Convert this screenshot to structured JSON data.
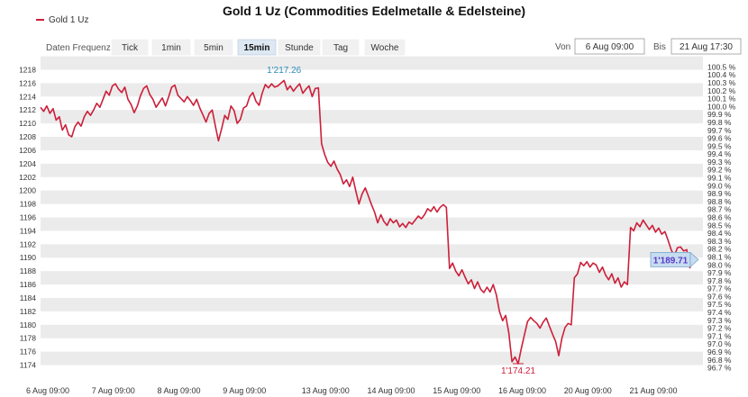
{
  "title": "Gold 1 Uz (Commodities Edelmetalle & Edelsteine)",
  "legend": {
    "label": "Gold 1 Uz",
    "color": "#cc1f3a"
  },
  "controls": {
    "frequency_label": "Daten Frequenz",
    "buttons": [
      "Tick",
      "1min",
      "5min",
      "15min",
      "Stunde",
      "Tag",
      "Woche"
    ],
    "active": "15min",
    "from_label": "Von",
    "from_value": "6 Aug 09:00",
    "to_label": "Bis",
    "to_value": "21 Aug 17:30"
  },
  "colors": {
    "line": "#cc1f3a",
    "band": "#ebebeb",
    "high_label": "#2a8db8",
    "low_label": "#cc1f3a",
    "last_label": "#5b38c9",
    "last_box": "#c6dcef"
  },
  "chart_data": {
    "type": "line",
    "title": "Gold 1 Uz (Commodities Edelmetalle & Edelsteine)",
    "xlabel": "",
    "ylabel": "",
    "x_categories": [
      "6 Aug 09:00",
      "7 Aug 09:00",
      "8 Aug 09:00",
      "9 Aug 09:00",
      "13 Aug 09:00",
      "14 Aug 09:00",
      "15 Aug 09:00",
      "16 Aug 09:00",
      "20 Aug 09:00",
      "21 Aug 09:00"
    ],
    "ylim": [
      1173,
      1219
    ],
    "yticks": [
      1174,
      1176,
      1178,
      1180,
      1182,
      1184,
      1186,
      1188,
      1190,
      1192,
      1194,
      1196,
      1198,
      1200,
      1202,
      1204,
      1206,
      1208,
      1210,
      1212,
      1214,
      1216,
      1218
    ],
    "y2_ticks": [
      "96.7 %",
      "96.8 %",
      "96.9 %",
      "97.0 %",
      "97.1 %",
      "97.2 %",
      "97.3 %",
      "97.4 %",
      "97.5 %",
      "97.6 %",
      "97.7 %",
      "97.8 %",
      "97.9 %",
      "98.0 %",
      "98.1 %",
      "98.2 %",
      "98.3 %",
      "98.4 %",
      "98.5 %",
      "98.6 %",
      "98.7 %",
      "98.8 %",
      "98.9 %",
      "99.0 %",
      "99.1 %",
      "99.2 %",
      "99.3 %",
      "99.4 %",
      "99.5 %",
      "99.6 %",
      "99.7 %",
      "99.8 %",
      "99.9 %",
      "100.0 %",
      "100.1 %",
      "100.2 %",
      "100.3 %",
      "100.4 %",
      "100.5 %"
    ],
    "y2lim": [
      96.65,
      100.55
    ],
    "grid": "alternating horizontal bands",
    "legend_position": "top-left",
    "series": [
      {
        "name": "Gold 1 Uz",
        "points": [
          [
            0,
            1212.4
          ],
          [
            1,
            1211.8
          ],
          [
            2,
            1212.6
          ],
          [
            3,
            1211.5
          ],
          [
            4,
            1212.2
          ],
          [
            5,
            1210.5
          ],
          [
            6,
            1211.0
          ],
          [
            7,
            1209.0
          ],
          [
            8,
            1209.8
          ],
          [
            9,
            1208.3
          ],
          [
            10,
            1208.0
          ],
          [
            11,
            1209.5
          ],
          [
            12,
            1210.2
          ],
          [
            13,
            1209.6
          ],
          [
            14,
            1211.0
          ],
          [
            15,
            1211.8
          ],
          [
            16,
            1211.2
          ],
          [
            17,
            1212.0
          ],
          [
            18,
            1213.0
          ],
          [
            19,
            1212.4
          ],
          [
            20,
            1213.6
          ],
          [
            21,
            1214.8
          ],
          [
            22,
            1214.2
          ],
          [
            23,
            1215.6
          ],
          [
            24,
            1215.9
          ],
          [
            25,
            1215.1
          ],
          [
            26,
            1214.6
          ],
          [
            27,
            1215.4
          ],
          [
            28,
            1213.6
          ],
          [
            29,
            1212.8
          ],
          [
            30,
            1211.6
          ],
          [
            31,
            1212.6
          ],
          [
            32,
            1214.1
          ],
          [
            33,
            1215.2
          ],
          [
            34,
            1215.6
          ],
          [
            35,
            1214.3
          ],
          [
            36,
            1213.6
          ],
          [
            37,
            1212.4
          ],
          [
            38,
            1213.1
          ],
          [
            39,
            1213.8
          ],
          [
            40,
            1212.6
          ],
          [
            41,
            1213.9
          ],
          [
            42,
            1215.4
          ],
          [
            43,
            1215.7
          ],
          [
            44,
            1214.2
          ],
          [
            45,
            1213.7
          ],
          [
            46,
            1213.2
          ],
          [
            47,
            1214.0
          ],
          [
            48,
            1213.4
          ],
          [
            49,
            1212.7
          ],
          [
            50,
            1213.6
          ],
          [
            51,
            1212.3
          ],
          [
            52,
            1211.3
          ],
          [
            53,
            1210.2
          ],
          [
            54,
            1211.5
          ],
          [
            55,
            1212.0
          ],
          [
            56,
            1209.6
          ],
          [
            57,
            1207.4
          ],
          [
            58,
            1209.2
          ],
          [
            59,
            1211.2
          ],
          [
            60,
            1210.6
          ],
          [
            61,
            1212.6
          ],
          [
            62,
            1211.9
          ],
          [
            63,
            1210.0
          ],
          [
            64,
            1210.6
          ],
          [
            65,
            1212.3
          ],
          [
            66,
            1212.6
          ],
          [
            67,
            1214.0
          ],
          [
            68,
            1214.6
          ],
          [
            69,
            1213.3
          ],
          [
            70,
            1212.7
          ],
          [
            71,
            1214.5
          ],
          [
            72,
            1215.8
          ],
          [
            73,
            1215.3
          ],
          [
            74,
            1215.9
          ],
          [
            75,
            1215.4
          ],
          [
            76,
            1215.6
          ],
          [
            77,
            1216.0
          ],
          [
            78,
            1216.4
          ],
          [
            79,
            1215.0
          ],
          [
            80,
            1215.6
          ],
          [
            81,
            1214.8
          ],
          [
            82,
            1215.4
          ],
          [
            83,
            1215.9
          ],
          [
            84,
            1214.5
          ],
          [
            85,
            1215.1
          ],
          [
            86,
            1215.6
          ],
          [
            87,
            1214.0
          ],
          [
            88,
            1215.2
          ],
          [
            89,
            1215.3
          ],
          [
            90,
            1207.0
          ],
          [
            91,
            1205.4
          ],
          [
            92,
            1204.2
          ],
          [
            93,
            1203.6
          ],
          [
            94,
            1204.4
          ],
          [
            95,
            1203.2
          ],
          [
            96,
            1202.4
          ],
          [
            97,
            1201.0
          ],
          [
            98,
            1201.6
          ],
          [
            99,
            1200.6
          ],
          [
            100,
            1202.0
          ],
          [
            101,
            1199.9
          ],
          [
            102,
            1198.0
          ],
          [
            103,
            1199.5
          ],
          [
            104,
            1200.4
          ],
          [
            105,
            1199.2
          ],
          [
            106,
            1197.9
          ],
          [
            107,
            1196.8
          ],
          [
            108,
            1195.2
          ],
          [
            109,
            1196.4
          ],
          [
            110,
            1195.4
          ],
          [
            111,
            1194.8
          ],
          [
            112,
            1195.8
          ],
          [
            113,
            1195.2
          ],
          [
            114,
            1195.6
          ],
          [
            115,
            1194.6
          ],
          [
            116,
            1195.1
          ],
          [
            117,
            1194.5
          ],
          [
            118,
            1195.3
          ],
          [
            119,
            1195.0
          ],
          [
            120,
            1195.6
          ],
          [
            121,
            1196.2
          ],
          [
            122,
            1195.8
          ],
          [
            123,
            1196.4
          ],
          [
            124,
            1197.3
          ],
          [
            125,
            1196.9
          ],
          [
            126,
            1197.6
          ],
          [
            127,
            1196.8
          ],
          [
            128,
            1197.5
          ],
          [
            129,
            1197.9
          ],
          [
            130,
            1197.5
          ],
          [
            131,
            1188.4
          ],
          [
            132,
            1189.2
          ],
          [
            133,
            1188.0
          ],
          [
            134,
            1187.3
          ],
          [
            135,
            1188.2
          ],
          [
            136,
            1187.1
          ],
          [
            137,
            1186.1
          ],
          [
            138,
            1186.7
          ],
          [
            139,
            1185.4
          ],
          [
            140,
            1186.4
          ],
          [
            141,
            1185.3
          ],
          [
            142,
            1184.8
          ],
          [
            143,
            1185.6
          ],
          [
            144,
            1184.9
          ],
          [
            145,
            1186.0
          ],
          [
            146,
            1184.5
          ],
          [
            147,
            1182.0
          ],
          [
            148,
            1180.6
          ],
          [
            149,
            1181.4
          ],
          [
            150,
            1178.8
          ],
          [
            151,
            1174.5
          ],
          [
            152,
            1175.2
          ],
          [
            153,
            1174.21
          ],
          [
            154,
            1176.5
          ],
          [
            155,
            1178.5
          ],
          [
            156,
            1180.5
          ],
          [
            157,
            1181.1
          ],
          [
            158,
            1180.6
          ],
          [
            159,
            1180.2
          ],
          [
            160,
            1179.5
          ],
          [
            161,
            1180.4
          ],
          [
            162,
            1181.0
          ],
          [
            163,
            1179.8
          ],
          [
            164,
            1178.6
          ],
          [
            165,
            1177.5
          ],
          [
            166,
            1175.4
          ],
          [
            167,
            1178.0
          ],
          [
            168,
            1179.6
          ],
          [
            169,
            1180.2
          ],
          [
            170,
            1180.0
          ],
          [
            171,
            1187.0
          ],
          [
            172,
            1187.6
          ],
          [
            173,
            1189.3
          ],
          [
            174,
            1188.8
          ],
          [
            175,
            1189.4
          ],
          [
            176,
            1188.6
          ],
          [
            177,
            1189.2
          ],
          [
            178,
            1188.9
          ],
          [
            179,
            1187.8
          ],
          [
            180,
            1188.6
          ],
          [
            181,
            1187.4
          ],
          [
            182,
            1186.7
          ],
          [
            183,
            1187.6
          ],
          [
            184,
            1186.2
          ],
          [
            185,
            1187.0
          ],
          [
            186,
            1185.6
          ],
          [
            187,
            1186.4
          ],
          [
            188,
            1186.0
          ],
          [
            189,
            1194.5
          ],
          [
            190,
            1194.0
          ],
          [
            191,
            1195.2
          ],
          [
            192,
            1194.6
          ],
          [
            193,
            1195.6
          ],
          [
            194,
            1194.9
          ],
          [
            195,
            1194.2
          ],
          [
            196,
            1194.8
          ],
          [
            197,
            1193.8
          ],
          [
            198,
            1194.4
          ],
          [
            199,
            1193.5
          ],
          [
            200,
            1193.9
          ],
          [
            201,
            1192.6
          ],
          [
            202,
            1191.2
          ],
          [
            203,
            1190.2
          ],
          [
            204,
            1191.5
          ],
          [
            205,
            1191.6
          ],
          [
            206,
            1191.0
          ],
          [
            207,
            1191.2
          ],
          [
            208,
            1188.5
          ],
          [
            209,
            1189.71
          ]
        ]
      }
    ],
    "annotations": [
      {
        "type": "high",
        "value": 1217.26,
        "label": "1'217.26"
      },
      {
        "type": "low",
        "value": 1174.21,
        "label": "1'174.21"
      },
      {
        "type": "last",
        "value": 1189.71,
        "label": "1'189.71"
      }
    ]
  }
}
